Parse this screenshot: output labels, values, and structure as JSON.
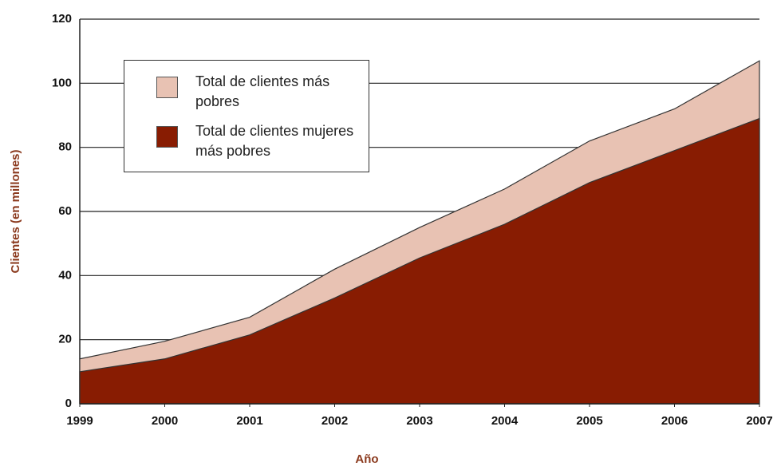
{
  "chart_data": {
    "type": "area",
    "x": [
      1999,
      2000,
      2001,
      2002,
      2003,
      2004,
      2005,
      2006,
      2007
    ],
    "xlim": [
      1999,
      2007
    ],
    "xticks": [
      1999,
      2000,
      2001,
      2002,
      2003,
      2004,
      2005,
      2006,
      2007
    ],
    "ylim": [
      0,
      120
    ],
    "yticks": [
      0,
      20,
      40,
      60,
      80,
      100,
      120
    ],
    "xlabel": "Año",
    "ylabel": "Clientes (en millones)",
    "grid": true,
    "legend": "upper left",
    "series": [
      {
        "name": "Total de clientes más pobres",
        "color": "#e8c2b3",
        "values": [
          14,
          19.5,
          27,
          42,
          55,
          67,
          82,
          92,
          107
        ]
      },
      {
        "name": "Total de clientes mujeres más pobres",
        "color": "#881c02",
        "values": [
          10,
          14,
          21.5,
          33,
          45.5,
          56,
          69,
          79,
          89
        ]
      }
    ]
  }
}
